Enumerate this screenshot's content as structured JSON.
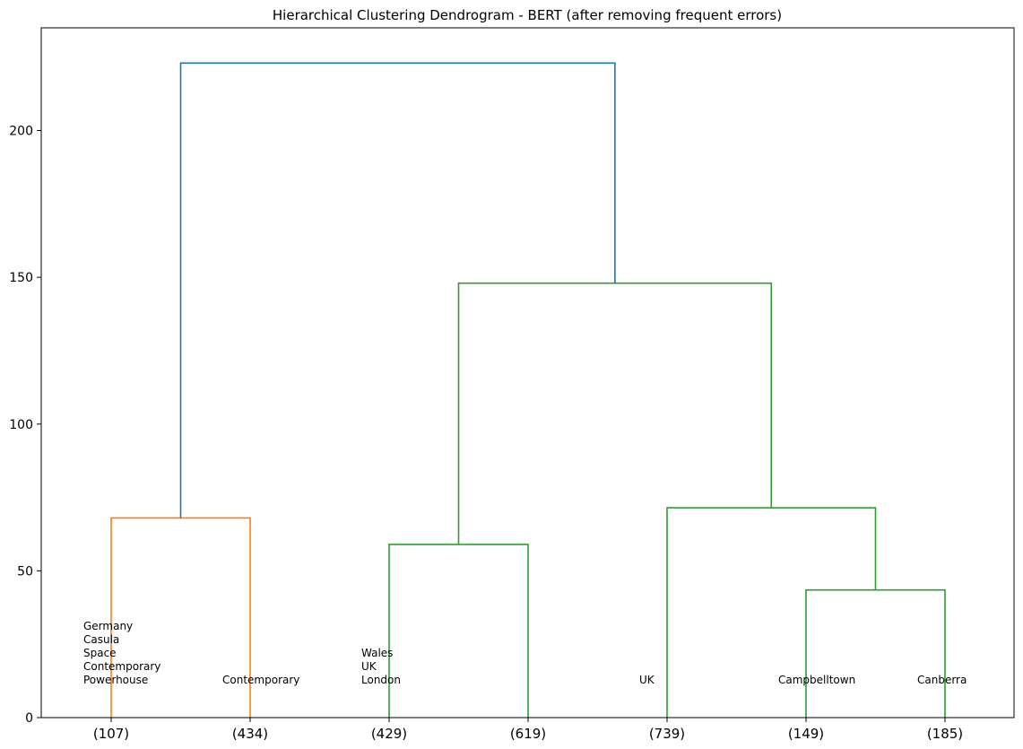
{
  "chart_data": {
    "type": "dendrogram",
    "title": "Hierarchical Clustering Dendrogram - BERT (after removing frequent errors)",
    "xlabel": "",
    "ylabel": "",
    "ylim": [
      0,
      235
    ],
    "y_ticks": [
      0,
      50,
      100,
      150,
      200
    ],
    "leaves": [
      "(107)",
      "(434)",
      "(429)",
      "(619)",
      "(739)",
      "(149)",
      "(185)"
    ],
    "leaf_annotations": [
      [
        "Germany",
        "Casula",
        "Space",
        "Contemporary",
        "Powerhouse"
      ],
      [
        "Contemporary"
      ],
      [
        "Wales",
        "UK",
        "London"
      ],
      [],
      [
        "UK"
      ],
      [
        "Campbelltown"
      ],
      [
        "Canberra"
      ]
    ],
    "merges": [
      {
        "left": 0,
        "right": 1,
        "height": 68,
        "color": "#ff7f0e"
      },
      {
        "left": 2,
        "right": 3,
        "height": 59,
        "color": "#2ca02c"
      },
      {
        "left": 5,
        "right": 6,
        "height": 43.5,
        "color": "#2ca02c"
      },
      {
        "left": 4,
        "right": "m3",
        "height": 71.5,
        "color": "#2ca02c"
      },
      {
        "left": "m2",
        "right": "m4",
        "height": 148,
        "color": "#2ca02c"
      },
      {
        "left": "m1",
        "right": "m5",
        "height": 223,
        "color": "#1f77b4"
      }
    ],
    "colors": {
      "cluster1": "#ff7f0e",
      "cluster2": "#2ca02c",
      "root": "#1f77b4"
    },
    "grid": false
  }
}
